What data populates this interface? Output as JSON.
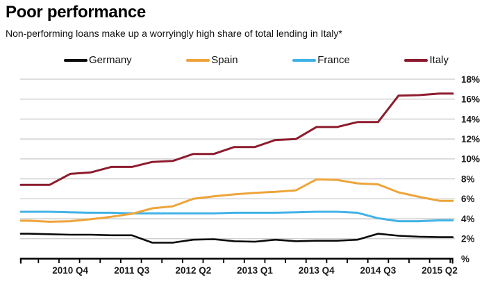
{
  "header": {
    "title": "Poor performance",
    "subtitle": "Non-performing loans make up a worryingly high share of total lending in Italy*"
  },
  "colors": {
    "germany": "#0a0a0a",
    "spain": "#eea43a",
    "france": "#41b2e6",
    "italy": "#8c1c2d",
    "grid": "#c9c9c9",
    "axis": "#000000",
    "text": "#1a1a1a"
  },
  "chart_data": {
    "type": "line",
    "x": [
      "2010 Q2",
      "2010 Q3",
      "2010 Q4",
      "2011 Q1",
      "2011 Q2",
      "2011 Q3",
      "2011 Q4",
      "2012 Q1",
      "2012 Q2",
      "2012 Q3",
      "2012 Q4",
      "2013 Q1",
      "2013 Q2",
      "2013 Q3",
      "2013 Q4",
      "2014 Q1",
      "2014 Q2",
      "2014 Q3",
      "2014 Q4",
      "2015 Q1",
      "2015 Q2"
    ],
    "series": [
      {
        "name": "Germany",
        "color_key": "germany",
        "values": [
          2.5,
          2.45,
          2.4,
          2.4,
          2.35,
          2.35,
          1.6,
          1.6,
          1.9,
          1.95,
          1.75,
          1.7,
          1.9,
          1.75,
          1.8,
          1.8,
          1.9,
          2.5,
          2.3,
          2.2,
          2.15
        ]
      },
      {
        "name": "Spain",
        "color_key": "spain",
        "values": [
          3.8,
          3.7,
          3.75,
          3.95,
          4.2,
          4.5,
          5.05,
          5.25,
          6.0,
          6.25,
          6.45,
          6.6,
          6.7,
          6.85,
          7.95,
          7.9,
          7.55,
          7.45,
          6.65,
          6.2,
          5.8
        ]
      },
      {
        "name": "France",
        "color_key": "france",
        "values": [
          4.7,
          4.7,
          4.65,
          4.6,
          4.6,
          4.55,
          4.55,
          4.55,
          4.55,
          4.55,
          4.6,
          4.6,
          4.6,
          4.65,
          4.7,
          4.7,
          4.6,
          4.05,
          3.75,
          3.75,
          3.85
        ]
      },
      {
        "name": "Italy",
        "color_key": "italy",
        "values": [
          7.4,
          7.4,
          8.5,
          8.65,
          9.2,
          9.2,
          9.7,
          9.8,
          10.5,
          10.5,
          11.2,
          11.2,
          11.9,
          12.0,
          13.2,
          13.2,
          13.7,
          13.7,
          16.35,
          16.4,
          16.55
        ]
      }
    ],
    "x_tick_labels": [
      "2010 Q4",
      "2011 Q3",
      "2012 Q2",
      "2013 Q1",
      "2013 Q4",
      "2014 Q3",
      "2015 Q2"
    ],
    "y_axis": {
      "min": 0,
      "max": 18,
      "step": 2,
      "position": "right",
      "unit": "%",
      "ticks": [
        {
          "value": 18,
          "label": "18%"
        },
        {
          "value": 16,
          "label": "16%"
        },
        {
          "value": 14,
          "label": "14%"
        },
        {
          "value": 12,
          "label": "12%"
        },
        {
          "value": 10,
          "label": "10%"
        },
        {
          "value": 8,
          "label": "8%"
        },
        {
          "value": 6,
          "label": "6%"
        },
        {
          "value": 4,
          "label": "4%"
        },
        {
          "value": 2,
          "label": "2%"
        },
        {
          "value": 0,
          "label": "%"
        }
      ]
    },
    "grid": true,
    "legend_position": "top"
  }
}
